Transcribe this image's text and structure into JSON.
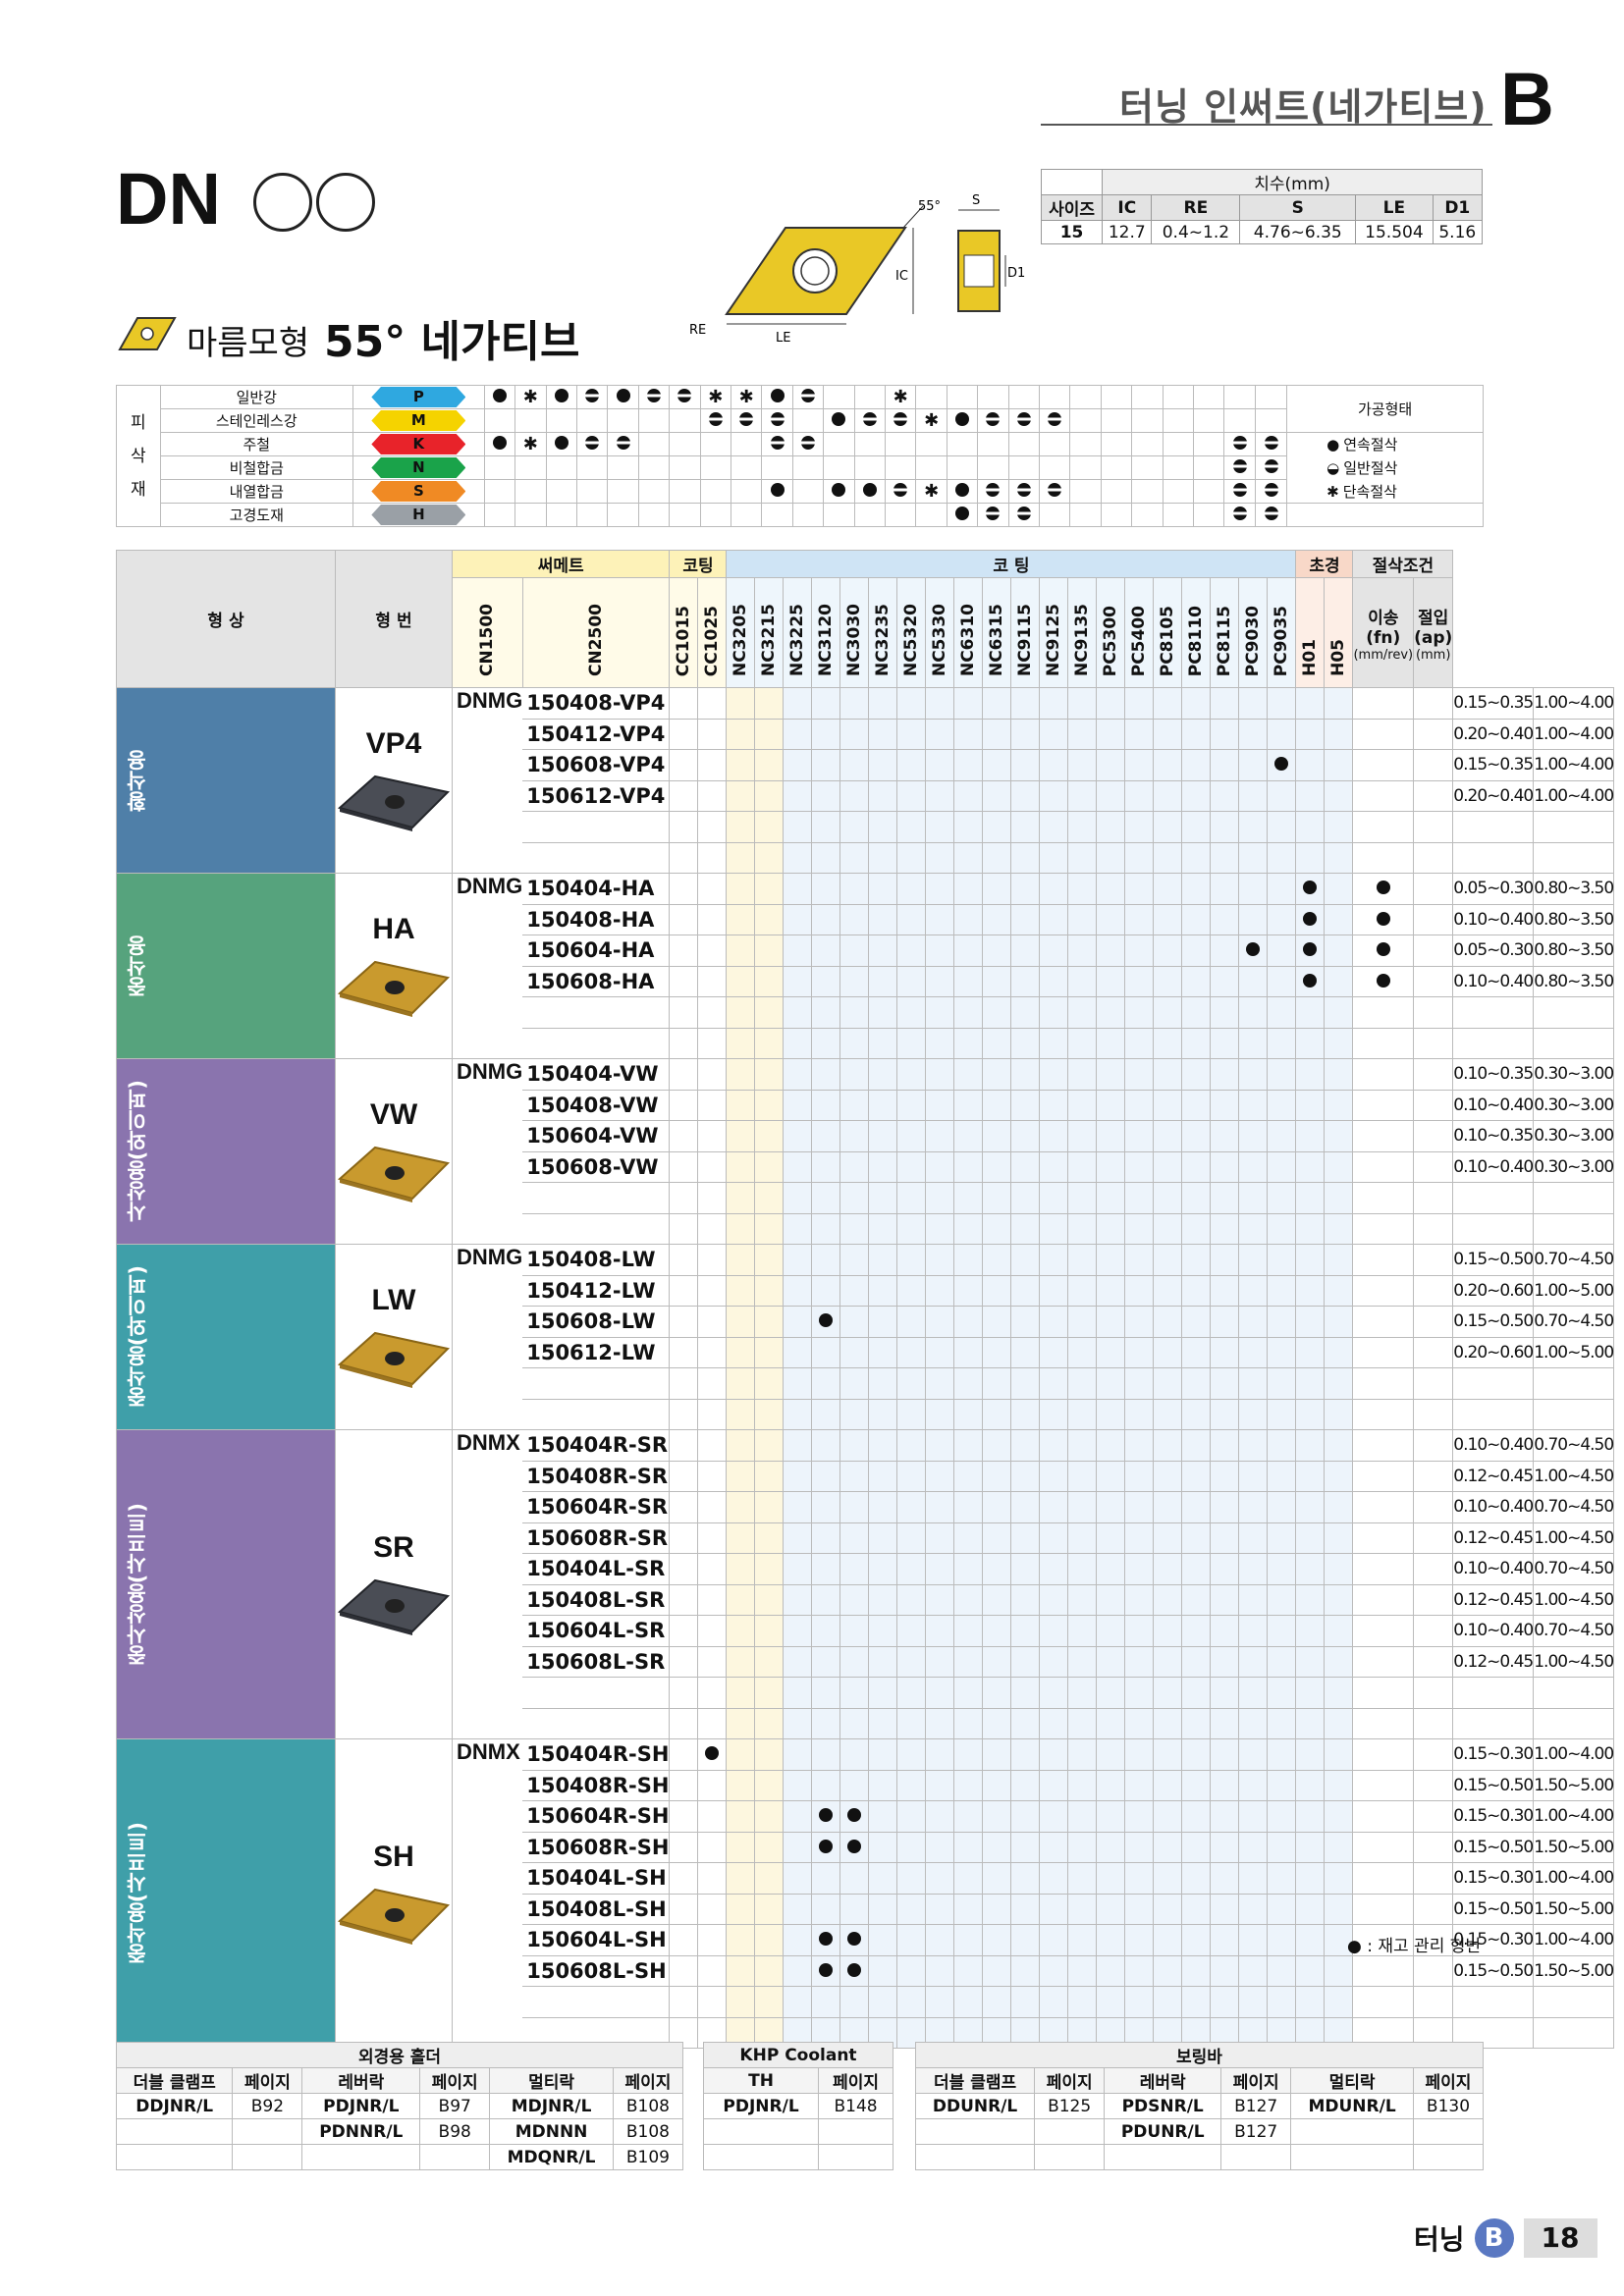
{
  "header": {
    "title": "터닝 인써트(네가티브)",
    "letter": "B"
  },
  "product": {
    "code": "DN",
    "shape_label": "마름모형",
    "angle_label": "55° 네가티브"
  },
  "diagram": {
    "angle": "55°",
    "s": "S",
    "ic": "IC",
    "d1": "D1",
    "re": "RE",
    "le": "LE"
  },
  "dimensions": {
    "caption": "치수(mm)",
    "headers": [
      "사이즈",
      "IC",
      "RE",
      "S",
      "LE",
      "D1"
    ],
    "row": [
      "15",
      "12.7",
      "0.4~1.2",
      "4.76~6.35",
      "15.504",
      "5.16"
    ]
  },
  "workpiece": {
    "label": "피삭재",
    "label_chars": [
      "피",
      "삭",
      "재"
    ],
    "processing_title": "가공형태",
    "rows": [
      {
        "name": "일반강",
        "code": "P",
        "color": "#2fa8e0"
      },
      {
        "name": "스테인레스강",
        "code": "M",
        "color": "#f5d300"
      },
      {
        "name": "주철",
        "code": "K",
        "color": "#e8232a"
      },
      {
        "name": "비철합금",
        "code": "N",
        "color": "#1aa34a"
      },
      {
        "name": "내열합금",
        "code": "S",
        "color": "#f08a24"
      },
      {
        "name": "고경도재",
        "code": "H",
        "color": "#9aa0a6"
      }
    ],
    "processing": [
      {
        "sym": "●",
        "label": "연속절삭"
      },
      {
        "sym": "◒",
        "label": "일반절삭"
      },
      {
        "sym": "✱",
        "label": "단속절삭"
      }
    ]
  },
  "table": {
    "shape_header": "형 상",
    "code_header": "형 번",
    "cermet_header": "써메트",
    "coat_header": "코팅",
    "coating_header": "코 팅",
    "cbn_header": "초경",
    "cond_header": "절삭조건",
    "feed_header": "이송(fn)",
    "feed_unit": "(mm/rev)",
    "depth_header": "절입(ap)",
    "depth_unit": "(mm)",
    "grades": [
      "CN1500",
      "CN2500",
      "CC1015",
      "CC1025",
      "NC3205",
      "NC3215",
      "NC3225",
      "NC3120",
      "NC3030",
      "NC3235",
      "NC5320",
      "NC5330",
      "NC6310",
      "NC6315",
      "NC9115",
      "NC9125",
      "NC9135",
      "PC5300",
      "PC5400",
      "PC8105",
      "PC8110",
      "PC8115",
      "PC9030",
      "PC9035",
      "H01",
      "H05"
    ],
    "groups": [
      {
        "category": "황삭용",
        "name": "VP4",
        "prefix": "DNMG",
        "color": "#4f7fa8",
        "rows": [
          {
            "code": "150408-VP4",
            "feed": "0.15~0.35",
            "depth": "1.00~4.00",
            "dots": []
          },
          {
            "code": "150412-VP4",
            "feed": "0.20~0.40",
            "depth": "1.00~4.00",
            "dots": []
          },
          {
            "code": "150608-VP4",
            "feed": "0.15~0.35",
            "depth": "1.00~4.00",
            "dots": [
              21
            ]
          },
          {
            "code": "150612-VP4",
            "feed": "0.20~0.40",
            "depth": "1.00~4.00",
            "dots": []
          }
        ]
      },
      {
        "category": "중삭용",
        "name": "HA",
        "prefix": "DNMG",
        "color": "#56a37d",
        "rows": [
          {
            "code": "150404-HA",
            "feed": "0.05~0.30",
            "depth": "0.80~3.50",
            "dots": [
              22,
              24
            ]
          },
          {
            "code": "150408-HA",
            "feed": "0.10~0.40",
            "depth": "0.80~3.50",
            "dots": [
              22,
              24
            ]
          },
          {
            "code": "150604-HA",
            "feed": "0.05~0.30",
            "depth": "0.80~3.50",
            "dots": [
              20,
              22,
              24
            ]
          },
          {
            "code": "150608-HA",
            "feed": "0.10~0.40",
            "depth": "0.80~3.50",
            "dots": [
              22,
              24
            ]
          }
        ]
      },
      {
        "category": "사상용(와이퍼)",
        "name": "VW",
        "prefix": "DNMG",
        "color": "#8a74ae",
        "rows": [
          {
            "code": "150404-VW",
            "feed": "0.10~0.35",
            "depth": "0.30~3.00",
            "dots": []
          },
          {
            "code": "150408-VW",
            "feed": "0.10~0.40",
            "depth": "0.30~3.00",
            "dots": []
          },
          {
            "code": "150604-VW",
            "feed": "0.10~0.35",
            "depth": "0.30~3.00",
            "dots": []
          },
          {
            "code": "150608-VW",
            "feed": "0.10~0.40",
            "depth": "0.30~3.00",
            "dots": []
          }
        ]
      },
      {
        "category": "중삭용(와이퍼)",
        "name": "LW",
        "prefix": "DNMG",
        "color": "#3f9fa9",
        "rows": [
          {
            "code": "150408-LW",
            "feed": "0.15~0.50",
            "depth": "0.70~4.50",
            "dots": []
          },
          {
            "code": "150412-LW",
            "feed": "0.20~0.60",
            "depth": "1.00~5.00",
            "dots": []
          },
          {
            "code": "150608-LW",
            "feed": "0.15~0.50",
            "depth": "0.70~4.50",
            "dots": [
              5
            ]
          },
          {
            "code": "150612-LW",
            "feed": "0.20~0.60",
            "depth": "1.00~5.00",
            "dots": []
          }
        ]
      },
      {
        "category": "중사상용(샤프트)",
        "name": "SR",
        "prefix": "DNMX",
        "color": "#8a74ae",
        "rows": [
          {
            "code": "150404R-SR",
            "feed": "0.10~0.40",
            "depth": "0.70~4.50",
            "dots": []
          },
          {
            "code": "150408R-SR",
            "feed": "0.12~0.45",
            "depth": "1.00~4.50",
            "dots": []
          },
          {
            "code": "150604R-SR",
            "feed": "0.10~0.40",
            "depth": "0.70~4.50",
            "dots": []
          },
          {
            "code": "150608R-SR",
            "feed": "0.12~0.45",
            "depth": "1.00~4.50",
            "dots": []
          },
          {
            "code": "150404L-SR",
            "feed": "0.10~0.40",
            "depth": "0.70~4.50",
            "dots": []
          },
          {
            "code": "150408L-SR",
            "feed": "0.12~0.45",
            "depth": "1.00~4.50",
            "dots": []
          },
          {
            "code": "150604L-SR",
            "feed": "0.10~0.40",
            "depth": "0.70~4.50",
            "dots": []
          },
          {
            "code": "150608L-SR",
            "feed": "0.12~0.45",
            "depth": "1.00~4.50",
            "dots": []
          }
        ]
      },
      {
        "category": "중삭용(샤프트)",
        "name": "SH",
        "prefix": "DNMX",
        "color": "#3f9fa9",
        "rows": [
          {
            "code": "150404R-SH",
            "feed": "0.15~0.30",
            "depth": "1.00~4.00",
            "dots": [
              1
            ]
          },
          {
            "code": "150408R-SH",
            "feed": "0.15~0.50",
            "depth": "1.50~5.00",
            "dots": []
          },
          {
            "code": "150604R-SH",
            "feed": "0.15~0.30",
            "depth": "1.00~4.00",
            "dots": [
              5,
              6
            ]
          },
          {
            "code": "150608R-SH",
            "feed": "0.15~0.50",
            "depth": "1.50~5.00",
            "dots": [
              5,
              6
            ]
          },
          {
            "code": "150404L-SH",
            "feed": "0.15~0.30",
            "depth": "1.00~4.00",
            "dots": []
          },
          {
            "code": "150408L-SH",
            "feed": "0.15~0.50",
            "depth": "1.50~5.00",
            "dots": []
          },
          {
            "code": "150604L-SH",
            "feed": "0.15~0.30",
            "depth": "1.00~4.00",
            "dots": [
              5,
              6
            ]
          },
          {
            "code": "150608L-SH",
            "feed": "0.15~0.50",
            "depth": "1.50~5.00",
            "dots": [
              5,
              6
            ]
          }
        ]
      }
    ]
  },
  "legend": "● : 재고 관리 형번",
  "holders": {
    "outer": {
      "title": "외경용 홀더",
      "headers": [
        "더블 클램프",
        "페이지",
        "레버락",
        "페이지",
        "멀티락",
        "페이지"
      ],
      "rows": [
        [
          "DDJNR/L",
          "B92",
          "PDJNR/L",
          "B97",
          "MDJNR/L",
          "B108"
        ],
        [
          "",
          "",
          "PDNNR/L",
          "B98",
          "MDNNN",
          "B108"
        ],
        [
          "",
          "",
          "",
          "",
          "MDQNR/L",
          "B109"
        ]
      ]
    },
    "khp": {
      "title": "KHP Coolant",
      "headers": [
        "TH",
        "페이지"
      ],
      "rows": [
        [
          "PDJNR/L",
          "B148"
        ],
        [
          "",
          ""
        ],
        [
          "",
          ""
        ]
      ]
    },
    "boring": {
      "title": "보링바",
      "headers": [
        "더블 클램프",
        "페이지",
        "레버락",
        "페이지",
        "멀티락",
        "페이지"
      ],
      "rows": [
        [
          "DDUNR/L",
          "B125",
          "PDSNR/L",
          "B127",
          "MDUNR/L",
          "B130"
        ],
        [
          "",
          "",
          "PDUNR/L",
          "B127",
          "",
          ""
        ],
        [
          "",
          "",
          "",
          "",
          "",
          ""
        ]
      ]
    }
  },
  "footer": {
    "section": "터닝",
    "letter": "B",
    "page": "18"
  }
}
